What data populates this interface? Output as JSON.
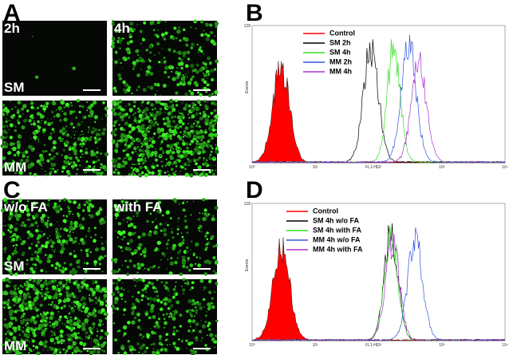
{
  "panel_a": {
    "letter": "A",
    "columns": [
      "2h",
      "4h"
    ],
    "rows": [
      "SM",
      "MM"
    ]
  },
  "panel_b": {
    "letter": "B",
    "y_axis_label": "Events",
    "y_max_label": "128",
    "x_axis_label": "FL1-H",
    "x_tick_labels": [
      "10⁰",
      "10¹",
      "10²",
      "10³",
      "10⁴"
    ],
    "legend": [
      {
        "name": "Control",
        "color": "#ff0000"
      },
      {
        "name": "SM 2h",
        "color": "#000000"
      },
      {
        "name": "SM 4h",
        "color": "#33dd22"
      },
      {
        "name": "MM 2h",
        "color": "#3355dd"
      },
      {
        "name": "MM 4h",
        "color": "#aa33cc"
      }
    ]
  },
  "panel_c": {
    "letter": "C",
    "columns": [
      "w/o FA",
      "with FA"
    ],
    "rows": [
      "SM",
      "MM"
    ]
  },
  "panel_d": {
    "letter": "D",
    "y_axis_label": "Events",
    "y_max_label": "128",
    "x_axis_label": "FL1-H",
    "x_tick_labels": [
      "10⁰",
      "10¹",
      "10²",
      "10³",
      "10⁴"
    ],
    "legend": [
      {
        "name": "Control",
        "color": "#ff0000"
      },
      {
        "name": "SM 4h w/o FA",
        "color": "#000000"
      },
      {
        "name": "SM 4h with FA",
        "color": "#33dd22"
      },
      {
        "name": "MM 4h w/o FA",
        "color": "#3355dd"
      },
      {
        "name": "MM 4h with FA",
        "color": "#aa33cc"
      }
    ]
  }
}
